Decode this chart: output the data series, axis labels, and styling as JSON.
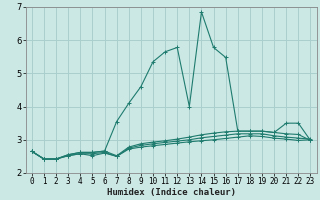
{
  "xlabel": "Humidex (Indice chaleur)",
  "background_color": "#cce8e5",
  "grid_color": "#aacfcc",
  "line_color": "#1e7b6e",
  "xlim": [
    -0.5,
    23.5
  ],
  "ylim": [
    2,
    7
  ],
  "yticks": [
    2,
    3,
    4,
    5,
    6,
    7
  ],
  "xticks": [
    0,
    1,
    2,
    3,
    4,
    5,
    6,
    7,
    8,
    9,
    10,
    11,
    12,
    13,
    14,
    15,
    16,
    17,
    18,
    19,
    20,
    21,
    22,
    23
  ],
  "series": [
    [
      2.65,
      2.42,
      2.42,
      2.52,
      2.58,
      2.52,
      2.6,
      2.5,
      2.72,
      2.78,
      2.82,
      2.86,
      2.9,
      2.94,
      2.97,
      3.0,
      3.04,
      3.08,
      3.12,
      3.1,
      3.05,
      3.02,
      2.98,
      3.0
    ],
    [
      2.65,
      2.42,
      2.42,
      2.52,
      2.58,
      2.58,
      2.62,
      2.5,
      2.75,
      2.83,
      2.88,
      2.92,
      2.96,
      3.0,
      3.06,
      3.1,
      3.14,
      3.18,
      3.18,
      3.18,
      3.12,
      3.08,
      3.05,
      3.02
    ],
    [
      2.65,
      2.42,
      2.42,
      2.55,
      2.62,
      2.62,
      2.66,
      2.52,
      2.78,
      2.88,
      2.93,
      2.97,
      3.02,
      3.08,
      3.15,
      3.2,
      3.24,
      3.26,
      3.26,
      3.26,
      3.22,
      3.18,
      3.16,
      2.98
    ],
    [
      2.65,
      2.42,
      2.42,
      2.55,
      2.62,
      2.62,
      2.66,
      3.55,
      4.1,
      4.6,
      5.35,
      5.65,
      5.78,
      4.0,
      6.85,
      5.78,
      5.48,
      3.26,
      3.26,
      3.26,
      3.22,
      3.5,
      3.5,
      2.98
    ]
  ]
}
